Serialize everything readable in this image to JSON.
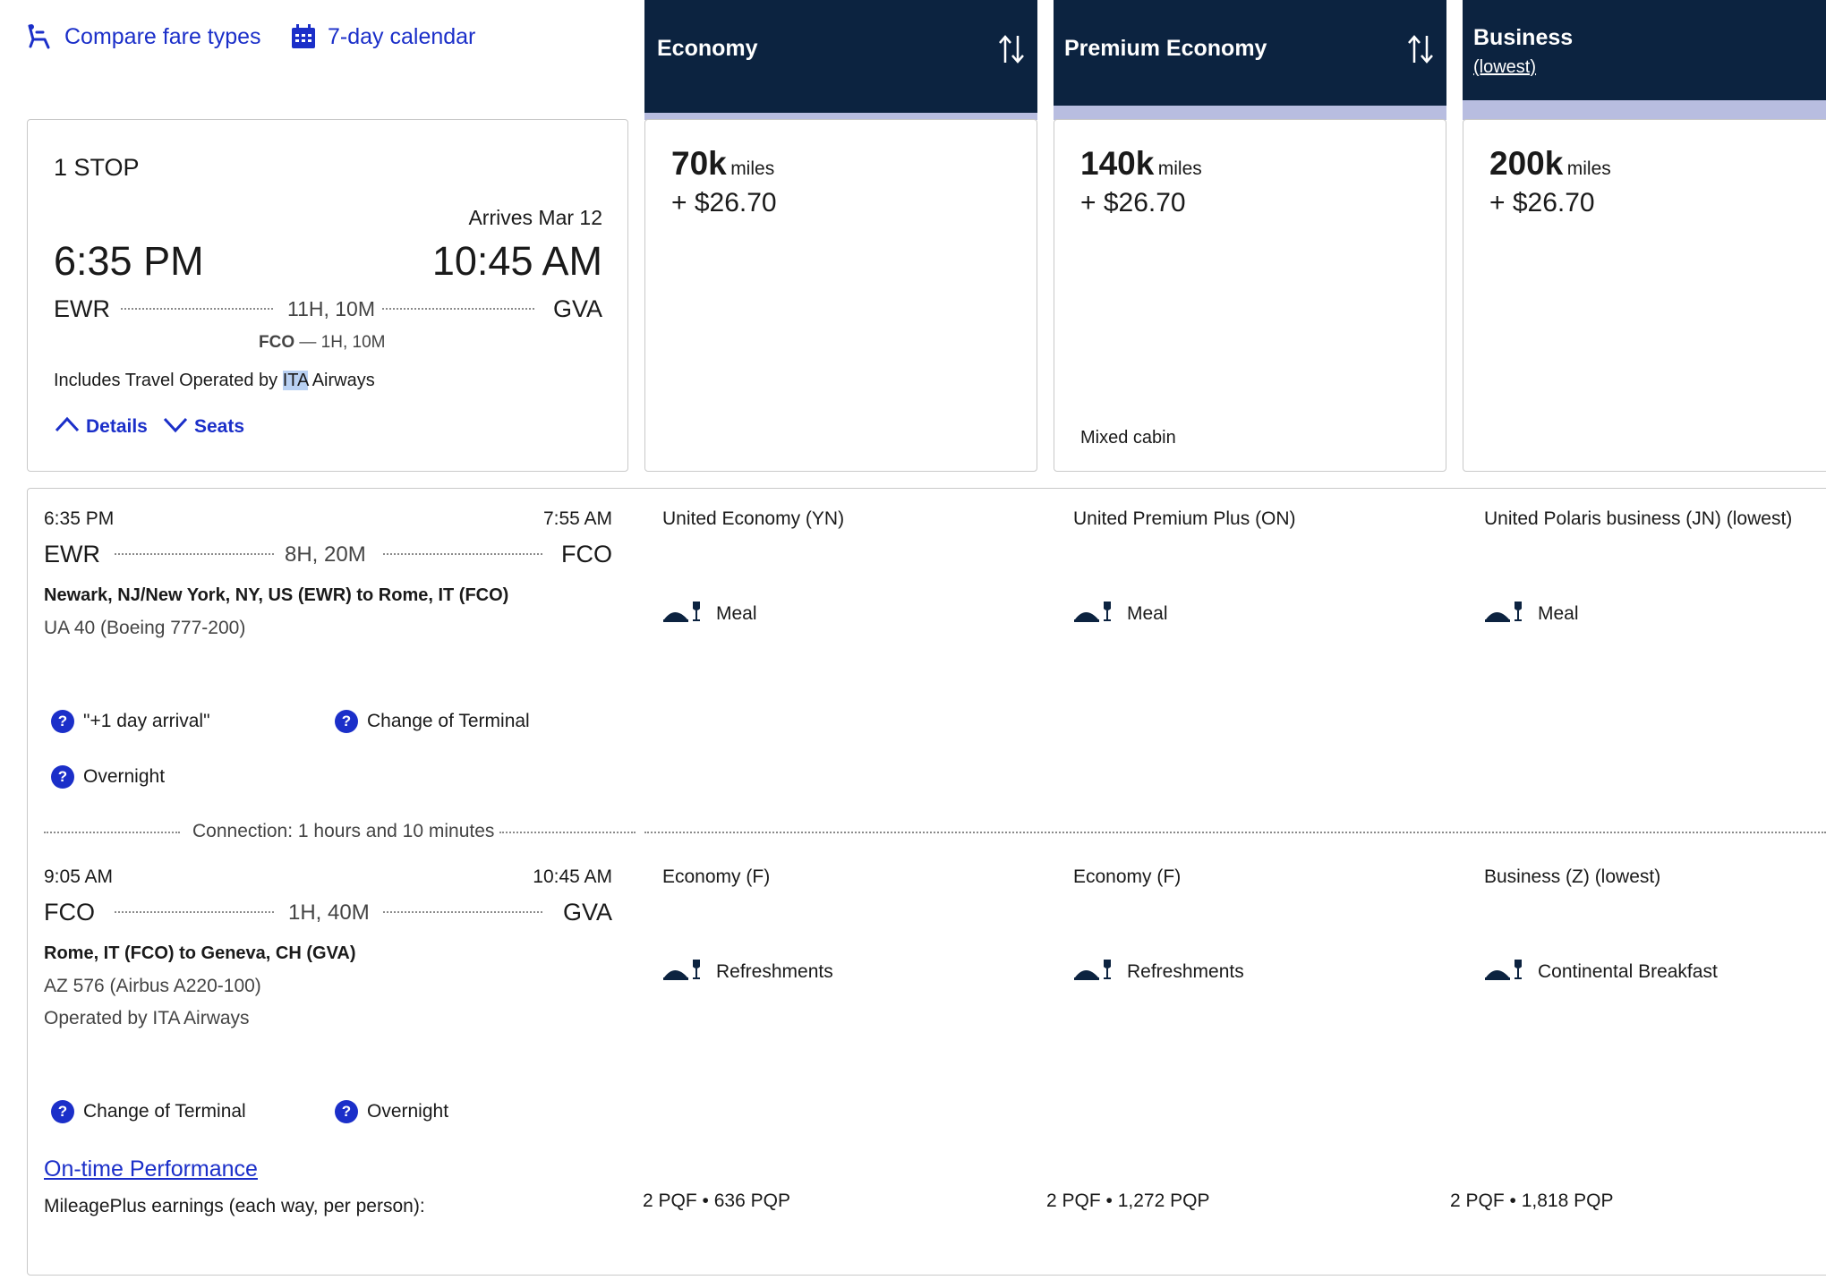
{
  "top_links": {
    "compare": "Compare fare types",
    "calendar": "7-day calendar"
  },
  "columns": [
    {
      "title": "Economy",
      "sub": ""
    },
    {
      "title": "Premium Economy",
      "sub": ""
    },
    {
      "title": "Business",
      "sub": "(lowest)"
    }
  ],
  "flight": {
    "stops": "1 STOP",
    "arrives": "Arrives Mar 12",
    "depart_time": "6:35 PM",
    "arrive_time": "10:45 AM",
    "origin": "EWR",
    "destination": "GVA",
    "duration": "11H, 10M",
    "layover_code": "FCO",
    "layover_sep": "—",
    "layover_time": "1H, 10M",
    "operated_prefix": "Includes Travel Operated by",
    "operated_highlight": "ITA",
    "operated_suffix": "Airways",
    "details_label": "Details",
    "seats_label": "Seats"
  },
  "fares": [
    {
      "miles": "70k",
      "unit": "miles",
      "tax": "+ $26.70",
      "note": ""
    },
    {
      "miles": "140k",
      "unit": "miles",
      "tax": "+ $26.70",
      "note": "Mixed cabin"
    },
    {
      "miles": "200k",
      "unit": "miles",
      "tax": "+ $26.70",
      "note": ""
    }
  ],
  "segments": [
    {
      "depart_time": "6:35 PM",
      "arrive_time": "7:55 AM",
      "origin": "EWR",
      "destination": "FCO",
      "duration": "8H, 20M",
      "route": "Newark, NJ/New York, NY, US (EWR) to Rome, IT (FCO)",
      "flight": "UA 40 (Boeing 777-200)",
      "operated": "",
      "flags": [
        "\"+1 day arrival\"",
        "Change of Terminal",
        "Overnight"
      ],
      "cabins": [
        {
          "name": "United Economy (YN)",
          "meal": "Meal"
        },
        {
          "name": "United Premium Plus (ON)",
          "meal": "Meal"
        },
        {
          "name": "United Polaris business (JN) (lowest)",
          "meal": "Meal"
        }
      ]
    },
    {
      "depart_time": "9:05 AM",
      "arrive_time": "10:45 AM",
      "origin": "FCO",
      "destination": "GVA",
      "duration": "1H, 40M",
      "route": "Rome, IT (FCO) to Geneva, CH (GVA)",
      "flight": "AZ 576 (Airbus A220-100)",
      "operated": "Operated by ITA Airways",
      "flags": [
        "Change of Terminal",
        "Overnight"
      ],
      "cabins": [
        {
          "name": "Economy (F)",
          "meal": "Refreshments"
        },
        {
          "name": "Economy (F)",
          "meal": "Refreshments"
        },
        {
          "name": "Business (Z) (lowest)",
          "meal": "Continental Breakfast"
        }
      ]
    }
  ],
  "connection": {
    "label": "Connection:",
    "value": "1 hours and 10 minutes"
  },
  "ontime_link": "On-time Performance",
  "earnings": {
    "label": "MileagePlus earnings (each way, per person):",
    "values": [
      {
        "pqf": "2 PQF",
        "pqp": "636 PQP"
      },
      {
        "pqf": "2 PQF",
        "pqp": "1,272 PQP"
      },
      {
        "pqf": "2 PQF",
        "pqp": "1,818 PQP"
      }
    ],
    "separator": "•"
  },
  "icons": {
    "seat": "seat-icon",
    "calendar": "calendar-icon",
    "sort": "sort-icon",
    "meal": "meal-icon",
    "help": "question-icon",
    "chevron_up": "chevron-up-icon",
    "chevron_down": "chevron-down-icon"
  },
  "colors": {
    "header": "#0c2340",
    "accent": "#1b2fc9",
    "stripe": "#b8bde0"
  }
}
